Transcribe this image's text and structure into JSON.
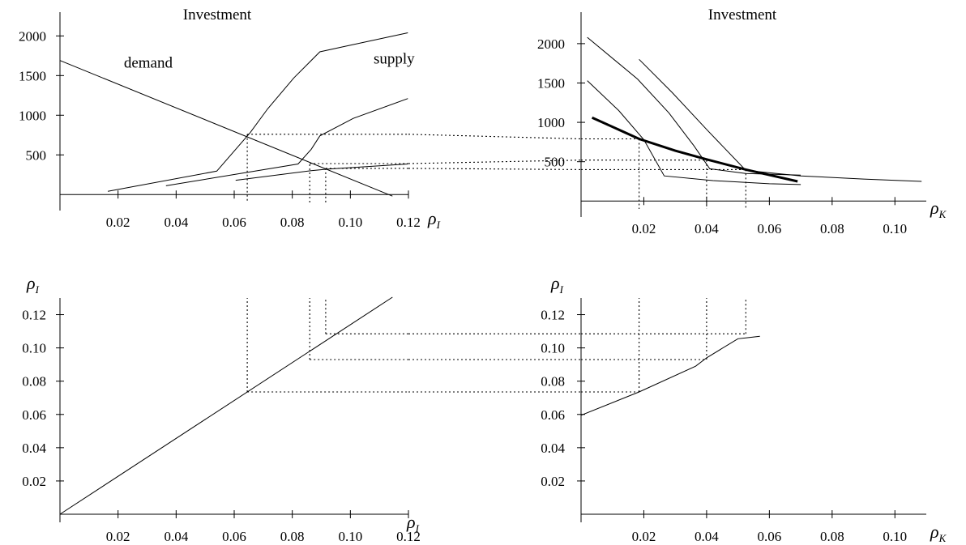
{
  "chart_data": [
    {
      "id": "top_left",
      "type": "line",
      "title": "Investment",
      "xlabel_symbol": "ρ",
      "xlabel_sub": "I",
      "xlim": [
        0,
        0.12
      ],
      "ylim": [
        -100,
        2300
      ],
      "xticks": [
        "0.02",
        "0.04",
        "0.06",
        "0.08",
        "0.10",
        "0.12"
      ],
      "xtick_values": [
        0.02,
        0.04,
        0.06,
        0.08,
        0.1,
        0.12
      ],
      "yticks": [
        "500",
        "1000",
        "1500",
        "2000"
      ],
      "ytick_values": [
        500,
        1000,
        1500,
        2000
      ],
      "annotations": [
        {
          "text": "demand",
          "x": 0.022,
          "y": 1600
        },
        {
          "text": "supply",
          "x": 0.108,
          "y": 1650
        }
      ],
      "series": [
        {
          "role": "demand",
          "points": [
            [
              0.0,
              1690
            ],
            [
              0.1145,
              -20
            ]
          ]
        },
        {
          "role": "supply",
          "points": [
            [
              0.0165,
              40
            ],
            [
              0.054,
              295
            ],
            [
              0.0655,
              780
            ],
            [
              0.0715,
              1080
            ],
            [
              0.0805,
              1470
            ],
            [
              0.0895,
              1800
            ],
            [
              0.097,
              1860
            ],
            [
              0.1198,
              2040
            ]
          ]
        },
        {
          "role": "supply",
          "points": [
            [
              0.0365,
              110
            ],
            [
              0.082,
              385
            ],
            [
              0.0865,
              570
            ],
            [
              0.0895,
              740
            ],
            [
              0.101,
              960
            ],
            [
              0.1198,
              1210
            ]
          ]
        },
        {
          "role": "supply",
          "points": [
            [
              0.0605,
              180
            ],
            [
              0.0865,
              300
            ],
            [
              0.092,
              320
            ],
            [
              0.1198,
              385
            ]
          ]
        }
      ],
      "guides": [
        {
          "points": [
            [
              0.0645,
              760
            ],
            [
              0.0645,
              -100
            ]
          ]
        },
        {
          "points": [
            [
              0.086,
              380
            ],
            [
              0.086,
              -100
            ]
          ]
        },
        {
          "points": [
            [
              0.0915,
              330
            ],
            [
              0.0915,
              -100
            ]
          ]
        },
        {
          "points": [
            [
              0.0645,
              760
            ],
            [
              0.12,
              760
            ]
          ]
        },
        {
          "points": [
            [
              0.086,
              390
            ],
            [
              0.12,
              390
            ]
          ]
        },
        {
          "points": [
            [
              0.0915,
              330
            ],
            [
              0.12,
              330
            ]
          ]
        }
      ]
    },
    {
      "id": "top_right",
      "type": "line",
      "title": "Investment",
      "xlabel_symbol": "ρ",
      "xlabel_sub": "K",
      "xlim": [
        0,
        0.11
      ],
      "ylim": [
        -100,
        2400
      ],
      "xticks": [
        "0.02",
        "0.04",
        "0.06",
        "0.08",
        "0.10"
      ],
      "xtick_values": [
        0.02,
        0.04,
        0.06,
        0.08,
        0.1
      ],
      "yticks": [
        "500",
        "1000",
        "1500",
        "2000"
      ],
      "ytick_values": [
        500,
        1000,
        1500,
        2000
      ],
      "series": [
        {
          "role": "thin",
          "points": [
            [
              0.002,
              2080
            ],
            [
              0.018,
              1550
            ],
            [
              0.028,
              1120
            ],
            [
              0.036,
              700
            ],
            [
              0.041,
              410
            ],
            [
              0.0525,
              350
            ],
            [
              0.07,
              330
            ]
          ]
        },
        {
          "role": "thin",
          "points": [
            [
              0.002,
              1530
            ],
            [
              0.012,
              1150
            ],
            [
              0.02,
              780
            ],
            [
              0.0265,
              320
            ],
            [
              0.042,
              260
            ],
            [
              0.06,
              220
            ],
            [
              0.07,
              210
            ]
          ]
        },
        {
          "role": "thin",
          "points": [
            [
              0.0185,
              1800
            ],
            [
              0.029,
              1380
            ],
            [
              0.04,
              910
            ],
            [
              0.0525,
              390
            ],
            [
              0.07,
              320
            ],
            [
              0.09,
              280
            ],
            [
              0.1085,
              250
            ]
          ]
        },
        {
          "role": "bold",
          "points": [
            [
              0.0035,
              1060
            ],
            [
              0.0185,
              790
            ],
            [
              0.03,
              640
            ],
            [
              0.04,
              530
            ],
            [
              0.0525,
              400
            ],
            [
              0.069,
              250
            ]
          ]
        }
      ],
      "guides": [
        {
          "points": [
            [
              0.0185,
              790
            ],
            [
              0.0185,
              -100
            ]
          ]
        },
        {
          "points": [
            [
              0.04,
              520
            ],
            [
              0.04,
              -100
            ]
          ]
        },
        {
          "points": [
            [
              0.0525,
              400
            ],
            [
              0.0525,
              -100
            ]
          ]
        },
        {
          "points": [
            [
              0.0,
              790
            ],
            [
              0.0185,
              790
            ]
          ]
        },
        {
          "points": [
            [
              0.0,
              520
            ],
            [
              0.04,
              520
            ]
          ]
        },
        {
          "points": [
            [
              0.0,
              400
            ],
            [
              0.0525,
              400
            ]
          ]
        }
      ]
    },
    {
      "id": "bottom_left",
      "type": "line",
      "ylabel_symbol": "ρ",
      "ylabel_sub": "I",
      "xlabel_symbol": "ρ",
      "xlabel_sub": "I",
      "xlim": [
        0,
        0.12
      ],
      "ylim": [
        0,
        0.13
      ],
      "xticks": [
        "0.02",
        "0.04",
        "0.06",
        "0.08",
        "0.10",
        "0.12"
      ],
      "xtick_values": [
        0.02,
        0.04,
        0.06,
        0.08,
        0.1,
        0.12
      ],
      "yticks": [
        "0.02",
        "0.04",
        "0.06",
        "0.08",
        "0.10",
        "0.12"
      ],
      "ytick_values": [
        0.02,
        0.04,
        0.06,
        0.08,
        0.1,
        0.12
      ],
      "series": [
        {
          "role": "identity",
          "points": [
            [
              0.0,
              0.0
            ],
            [
              0.1145,
              0.1305
            ]
          ]
        }
      ],
      "guides": [
        {
          "points": [
            [
              0.0645,
              0.0735
            ],
            [
              0.0645,
              0.13
            ]
          ]
        },
        {
          "points": [
            [
              0.086,
              0.093
            ],
            [
              0.086,
              0.13
            ]
          ]
        },
        {
          "points": [
            [
              0.0915,
              0.1085
            ],
            [
              0.0915,
              0.13
            ]
          ]
        },
        {
          "points": [
            [
              0.0645,
              0.0735
            ],
            [
              0.12,
              0.0735
            ]
          ]
        },
        {
          "points": [
            [
              0.086,
              0.093
            ],
            [
              0.12,
              0.093
            ]
          ]
        },
        {
          "points": [
            [
              0.0915,
              0.1085
            ],
            [
              0.12,
              0.1085
            ]
          ]
        }
      ]
    },
    {
      "id": "bottom_right",
      "type": "line",
      "ylabel_symbol": "ρ",
      "ylabel_sub": "I",
      "xlabel_symbol": "ρ",
      "xlabel_sub": "K",
      "xlim": [
        0,
        0.11
      ],
      "ylim": [
        0,
        0.13
      ],
      "xticks": [
        "0.02",
        "0.04",
        "0.06",
        "0.08",
        "0.10"
      ],
      "xtick_values": [
        0.02,
        0.04,
        0.06,
        0.08,
        0.1
      ],
      "yticks": [
        "0.02",
        "0.04",
        "0.06",
        "0.08",
        "0.10",
        "0.12"
      ],
      "ytick_values": [
        0.02,
        0.04,
        0.06,
        0.08,
        0.1,
        0.12
      ],
      "series": [
        {
          "role": "mapping",
          "points": [
            [
              0.0,
              0.0595
            ],
            [
              0.0185,
              0.0735
            ],
            [
              0.0365,
              0.089
            ],
            [
              0.04,
              0.094
            ],
            [
              0.05,
              0.1055
            ],
            [
              0.0525,
              0.106
            ],
            [
              0.057,
              0.107
            ]
          ]
        }
      ],
      "guides": [
        {
          "points": [
            [
              0.0185,
              0.0735
            ],
            [
              0.0185,
              0.13
            ]
          ]
        },
        {
          "points": [
            [
              0.04,
              0.093
            ],
            [
              0.04,
              0.13
            ]
          ]
        },
        {
          "points": [
            [
              0.0525,
              0.1085
            ],
            [
              0.0525,
              0.13
            ]
          ]
        },
        {
          "points": [
            [
              0.0,
              0.0735
            ],
            [
              0.0185,
              0.0735
            ]
          ]
        },
        {
          "points": [
            [
              0.0,
              0.093
            ],
            [
              0.04,
              0.093
            ]
          ]
        },
        {
          "points": [
            [
              0.0,
              0.1085
            ],
            [
              0.0525,
              0.1085
            ]
          ]
        }
      ]
    }
  ]
}
